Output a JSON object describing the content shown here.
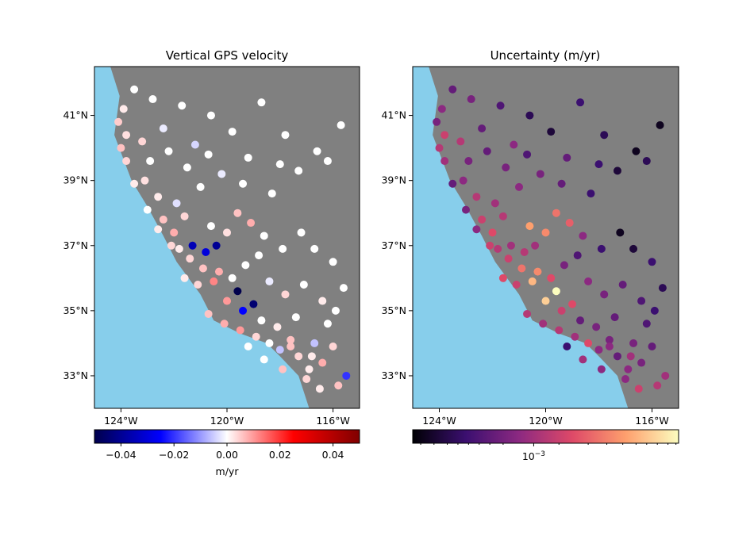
{
  "colors": {
    "ocean": "#87ceeb",
    "land": "#808080",
    "diverging": [
      "#00004c",
      "#0000ff",
      "#ffffff",
      "#ff0000",
      "#800000"
    ],
    "magma": [
      "#000004",
      "#3b0f70",
      "#8c2981",
      "#de4968",
      "#fe9f6d",
      "#fcfdbf"
    ]
  },
  "map_extent": {
    "lon": [
      -125,
      -115
    ],
    "lat": [
      32,
      42.5
    ]
  },
  "maps": [
    {
      "title": "Vertical GPS velocity",
      "xticks": [
        {
          "value": -124,
          "label": "124°W"
        },
        {
          "value": -120,
          "label": "120°W"
        },
        {
          "value": -116,
          "label": "116°W"
        }
      ],
      "yticks": [
        {
          "value": 33,
          "label": "33°N"
        },
        {
          "value": 35,
          "label": "35°N"
        },
        {
          "value": 37,
          "label": "37°N"
        },
        {
          "value": 39,
          "label": "39°N"
        },
        {
          "value": 41,
          "label": "41°N"
        }
      ],
      "colorbar": {
        "cmap": "seismic",
        "range": [
          -0.05,
          0.05
        ],
        "ticks": [
          {
            "value": -0.04,
            "label": "−0.04"
          },
          {
            "value": -0.02,
            "label": "−0.02"
          },
          {
            "value": 0.0,
            "label": "0.00"
          },
          {
            "value": 0.02,
            "label": "0.02"
          },
          {
            "value": 0.04,
            "label": "0.04"
          }
        ],
        "label": "m/yr"
      }
    },
    {
      "title": "Uncertainty (m/yr)",
      "xticks": [
        {
          "value": -124,
          "label": "124°W"
        },
        {
          "value": -120,
          "label": "120°W"
        },
        {
          "value": -116,
          "label": "116°W"
        }
      ],
      "yticks": [
        {
          "value": 33,
          "label": "33°N"
        },
        {
          "value": 35,
          "label": "35°N"
        },
        {
          "value": 37,
          "label": "37°N"
        },
        {
          "value": 39,
          "label": "39°N"
        },
        {
          "value": 41,
          "label": "41°N"
        }
      ],
      "colorbar": {
        "cmap": "magma",
        "scale": "log",
        "major_tick": {
          "label": "10",
          "exponent": "−3"
        },
        "label": ""
      }
    }
  ],
  "stations": [
    {
      "lon": -124.1,
      "lat": 40.8,
      "v": 0.005,
      "u": 0.35
    },
    {
      "lon": -123.8,
      "lat": 40.4,
      "v": 0.003,
      "u": 0.55
    },
    {
      "lon": -123.9,
      "lat": 41.2,
      "v": 0.002,
      "u": 0.4
    },
    {
      "lon": -123.5,
      "lat": 41.8,
      "v": 0.0,
      "u": 0.3
    },
    {
      "lon": -123.2,
      "lat": 40.2,
      "v": 0.004,
      "u": 0.5
    },
    {
      "lon": -122.8,
      "lat": 41.5,
      "v": 0.0,
      "u": 0.35
    },
    {
      "lon": -122.4,
      "lat": 40.6,
      "v": -0.002,
      "u": 0.3
    },
    {
      "lon": -121.7,
      "lat": 41.3,
      "v": 0.0,
      "u": 0.25
    },
    {
      "lon": -121.2,
      "lat": 40.1,
      "v": -0.004,
      "u": 0.4
    },
    {
      "lon": -120.6,
      "lat": 41.0,
      "v": 0.0,
      "u": 0.15
    },
    {
      "lon": -119.8,
      "lat": 40.5,
      "v": 0.0,
      "u": 0.1
    },
    {
      "lon": -118.7,
      "lat": 41.4,
      "v": 0.0,
      "u": 0.2
    },
    {
      "lon": -117.8,
      "lat": 40.4,
      "v": 0.0,
      "u": 0.15
    },
    {
      "lon": -116.6,
      "lat": 39.9,
      "v": 0.0,
      "u": 0.05
    },
    {
      "lon": -115.7,
      "lat": 40.7,
      "v": 0.0,
      "u": 0.05
    },
    {
      "lon": -118.0,
      "lat": 39.5,
      "v": 0.0,
      "u": 0.2
    },
    {
      "lon": -119.2,
      "lat": 39.7,
      "v": 0.0,
      "u": 0.3
    },
    {
      "lon": -120.2,
      "lat": 39.2,
      "v": -0.002,
      "u": 0.35
    },
    {
      "lon": -121.0,
      "lat": 38.8,
      "v": 0.0,
      "u": 0.4
    },
    {
      "lon": -121.9,
      "lat": 38.3,
      "v": -0.003,
      "u": 0.45
    },
    {
      "lon": -122.6,
      "lat": 38.5,
      "v": 0.002,
      "u": 0.5
    },
    {
      "lon": -123.1,
      "lat": 39.0,
      "v": 0.003,
      "u": 0.4
    },
    {
      "lon": -122.4,
      "lat": 37.8,
      "v": 0.006,
      "u": 0.55
    },
    {
      "lon": -122.0,
      "lat": 37.4,
      "v": 0.008,
      "u": 0.6
    },
    {
      "lon": -121.6,
      "lat": 37.9,
      "v": 0.004,
      "u": 0.5
    },
    {
      "lon": -121.3,
      "lat": 37.0,
      "v": -0.035,
      "u": 0.45
    },
    {
      "lon": -120.8,
      "lat": 36.8,
      "v": -0.03,
      "u": 0.5
    },
    {
      "lon": -120.4,
      "lat": 37.0,
      "v": -0.04,
      "u": 0.45
    },
    {
      "lon": -120.6,
      "lat": 37.6,
      "v": 0.0,
      "u": 0.8
    },
    {
      "lon": -120.0,
      "lat": 37.4,
      "v": 0.003,
      "u": 0.75
    },
    {
      "lon": -119.6,
      "lat": 38.0,
      "v": 0.006,
      "u": 0.7
    },
    {
      "lon": -119.1,
      "lat": 37.7,
      "v": 0.008,
      "u": 0.65
    },
    {
      "lon": -118.6,
      "lat": 37.3,
      "v": 0.0,
      "u": 0.4
    },
    {
      "lon": -117.9,
      "lat": 36.9,
      "v": 0.0,
      "u": 0.2
    },
    {
      "lon": -117.2,
      "lat": 37.4,
      "v": 0.0,
      "u": 0.05
    },
    {
      "lon": -116.7,
      "lat": 36.9,
      "v": 0.0,
      "u": 0.1
    },
    {
      "lon": -116.0,
      "lat": 36.5,
      "v": 0.0,
      "u": 0.2
    },
    {
      "lon": -115.6,
      "lat": 35.7,
      "v": 0.0,
      "u": 0.15
    },
    {
      "lon": -116.4,
      "lat": 35.3,
      "v": 0.002,
      "u": 0.25
    },
    {
      "lon": -117.1,
      "lat": 35.8,
      "v": 0.0,
      "u": 0.3
    },
    {
      "lon": -117.8,
      "lat": 35.5,
      "v": 0.004,
      "u": 0.35
    },
    {
      "lon": -118.4,
      "lat": 35.9,
      "v": -0.002,
      "u": 0.4
    },
    {
      "lon": -119.0,
      "lat": 35.2,
      "v": -0.045,
      "u": 0.6
    },
    {
      "lon": -119.6,
      "lat": 35.6,
      "v": -0.05,
      "u": 1.0
    },
    {
      "lon": -119.4,
      "lat": 35.0,
      "v": -0.025,
      "u": 0.55
    },
    {
      "lon": -120.0,
      "lat": 35.3,
      "v": 0.01,
      "u": 0.9
    },
    {
      "lon": -120.5,
      "lat": 35.9,
      "v": 0.012,
      "u": 0.85
    },
    {
      "lon": -120.9,
      "lat": 36.3,
      "v": 0.006,
      "u": 0.7
    },
    {
      "lon": -121.4,
      "lat": 36.6,
      "v": 0.004,
      "u": 0.55
    },
    {
      "lon": -121.8,
      "lat": 36.9,
      "v": 0.002,
      "u": 0.5
    },
    {
      "lon": -120.7,
      "lat": 34.9,
      "v": 0.006,
      "u": 0.5
    },
    {
      "lon": -120.1,
      "lat": 34.6,
      "v": 0.008,
      "u": 0.45
    },
    {
      "lon": -119.5,
      "lat": 34.4,
      "v": 0.01,
      "u": 0.5
    },
    {
      "lon": -118.9,
      "lat": 34.2,
      "v": 0.004,
      "u": 0.45
    },
    {
      "lon": -118.4,
      "lat": 34.0,
      "v": 0.0,
      "u": 0.6
    },
    {
      "lon": -118.0,
      "lat": 33.8,
      "v": -0.006,
      "u": 0.4
    },
    {
      "lon": -117.6,
      "lat": 34.1,
      "v": 0.006,
      "u": 0.35
    },
    {
      "lon": -117.3,
      "lat": 33.6,
      "v": 0.004,
      "u": 0.3
    },
    {
      "lon": -116.9,
      "lat": 33.2,
      "v": 0.002,
      "u": 0.4
    },
    {
      "lon": -116.4,
      "lat": 33.4,
      "v": 0.008,
      "u": 0.35
    },
    {
      "lon": -116.0,
      "lat": 33.9,
      "v": 0.004,
      "u": 0.3
    },
    {
      "lon": -115.5,
      "lat": 33.0,
      "v": -0.02,
      "u": 0.45
    },
    {
      "lon": -115.8,
      "lat": 32.7,
      "v": 0.006,
      "u": 0.5
    },
    {
      "lon": -116.5,
      "lat": 32.6,
      "v": 0.002,
      "u": 0.55
    },
    {
      "lon": -117.0,
      "lat": 32.9,
      "v": 0.004,
      "u": 0.4
    },
    {
      "lon": -116.2,
      "lat": 34.6,
      "v": 0.0,
      "u": 0.25
    },
    {
      "lon": -115.9,
      "lat": 35.0,
      "v": 0.0,
      "u": 0.2
    },
    {
      "lon": -117.4,
      "lat": 34.8,
      "v": 0.0,
      "u": 0.3
    },
    {
      "lon": -118.1,
      "lat": 34.5,
      "v": 0.002,
      "u": 0.35
    },
    {
      "lon": -118.7,
      "lat": 34.7,
      "v": 0.0,
      "u": 0.3
    },
    {
      "lon": -119.2,
      "lat": 33.9,
      "v": 0.0,
      "u": 0.2
    },
    {
      "lon": -118.6,
      "lat": 33.5,
      "v": 0.0,
      "u": 0.45
    },
    {
      "lon": -117.9,
      "lat": 33.2,
      "v": 0.006,
      "u": 0.4
    },
    {
      "lon": -116.7,
      "lat": 34.0,
      "v": -0.006,
      "u": 0.35
    },
    {
      "lon": -120.3,
      "lat": 36.2,
      "v": 0.008,
      "u": 0.75
    },
    {
      "lon": -119.8,
      "lat": 36.0,
      "v": 0.0,
      "u": 0.6
    },
    {
      "lon": -119.3,
      "lat": 36.4,
      "v": 0.0,
      "u": 0.35
    },
    {
      "lon": -118.8,
      "lat": 36.7,
      "v": 0.0,
      "u": 0.25
    },
    {
      "lon": -122.9,
      "lat": 39.6,
      "v": 0.0,
      "u": 0.35
    },
    {
      "lon": -122.2,
      "lat": 39.9,
      "v": 0.0,
      "u": 0.3
    },
    {
      "lon": -121.5,
      "lat": 39.4,
      "v": 0.0,
      "u": 0.35
    },
    {
      "lon": -120.7,
      "lat": 39.8,
      "v": 0.0,
      "u": 0.25
    },
    {
      "lon": -119.4,
      "lat": 38.9,
      "v": 0.0,
      "u": 0.3
    },
    {
      "lon": -118.3,
      "lat": 38.6,
      "v": 0.0,
      "u": 0.2
    },
    {
      "lon": -117.3,
      "lat": 39.3,
      "v": 0.0,
      "u": 0.1
    },
    {
      "lon": -116.2,
      "lat": 39.6,
      "v": 0.0,
      "u": 0.15
    },
    {
      "lon": -121.1,
      "lat": 35.8,
      "v": 0.004,
      "u": 0.55
    },
    {
      "lon": -121.6,
      "lat": 36.0,
      "v": 0.002,
      "u": 0.6
    },
    {
      "lon": -122.1,
      "lat": 37.0,
      "v": 0.004,
      "u": 0.55
    },
    {
      "lon": -122.6,
      "lat": 37.5,
      "v": 0.002,
      "u": 0.4
    },
    {
      "lon": -123.0,
      "lat": 38.1,
      "v": 0.0,
      "u": 0.35
    },
    {
      "lon": -123.5,
      "lat": 38.9,
      "v": 0.002,
      "u": 0.3
    },
    {
      "lon": -123.8,
      "lat": 39.6,
      "v": 0.004,
      "u": 0.45
    },
    {
      "lon": -124.0,
      "lat": 40.0,
      "v": 0.006,
      "u": 0.5
    },
    {
      "lon": -117.6,
      "lat": 33.9,
      "v": 0.006,
      "u": 0.4
    },
    {
      "lon": -116.8,
      "lat": 33.6,
      "v": 0.002,
      "u": 0.45
    }
  ]
}
